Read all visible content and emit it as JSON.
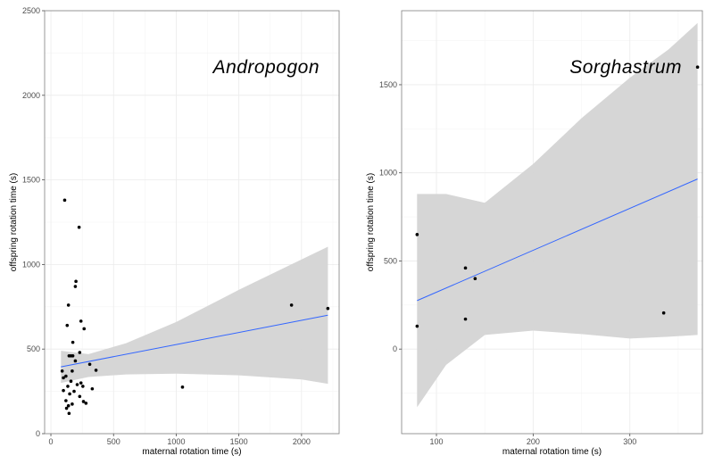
{
  "chart_data": [
    {
      "type": "scatter",
      "title": "Andropogon",
      "xlabel": "maternal rotation time (s)",
      "ylabel": "offspring rotation time (s)",
      "xlim": [
        -50,
        2300
      ],
      "ylim": [
        0,
        2500
      ],
      "xticks": [
        0,
        500,
        1000,
        1500,
        2000
      ],
      "yticks": [
        0,
        500,
        1000,
        1500,
        2000,
        2500
      ],
      "grid": true,
      "points": [
        {
          "x": 110,
          "y": 1380
        },
        {
          "x": 225,
          "y": 1220
        },
        {
          "x": 200,
          "y": 900
        },
        {
          "x": 195,
          "y": 870
        },
        {
          "x": 140,
          "y": 760
        },
        {
          "x": 240,
          "y": 665
        },
        {
          "x": 130,
          "y": 640
        },
        {
          "x": 265,
          "y": 620
        },
        {
          "x": 175,
          "y": 540
        },
        {
          "x": 230,
          "y": 480
        },
        {
          "x": 145,
          "y": 460
        },
        {
          "x": 160,
          "y": 460
        },
        {
          "x": 175,
          "y": 460
        },
        {
          "x": 195,
          "y": 430
        },
        {
          "x": 310,
          "y": 410
        },
        {
          "x": 90,
          "y": 370
        },
        {
          "x": 360,
          "y": 375
        },
        {
          "x": 170,
          "y": 370
        },
        {
          "x": 120,
          "y": 340
        },
        {
          "x": 100,
          "y": 330
        },
        {
          "x": 160,
          "y": 310
        },
        {
          "x": 240,
          "y": 300
        },
        {
          "x": 210,
          "y": 290
        },
        {
          "x": 135,
          "y": 280
        },
        {
          "x": 255,
          "y": 280
        },
        {
          "x": 330,
          "y": 265
        },
        {
          "x": 100,
          "y": 255
        },
        {
          "x": 185,
          "y": 250
        },
        {
          "x": 150,
          "y": 235
        },
        {
          "x": 230,
          "y": 220
        },
        {
          "x": 120,
          "y": 195
        },
        {
          "x": 260,
          "y": 190
        },
        {
          "x": 280,
          "y": 180
        },
        {
          "x": 170,
          "y": 175
        },
        {
          "x": 140,
          "y": 165
        },
        {
          "x": 125,
          "y": 150
        },
        {
          "x": 145,
          "y": 120
        },
        {
          "x": 1050,
          "y": 275
        },
        {
          "x": 1920,
          "y": 760
        },
        {
          "x": 2210,
          "y": 740
        }
      ],
      "fit": {
        "x": [
          80,
          2210
        ],
        "y": [
          395,
          700
        ]
      },
      "band": {
        "x": [
          80,
          300,
          600,
          1000,
          1500,
          2000,
          2210
        ],
        "lower": [
          300,
          335,
          350,
          355,
          345,
          320,
          295
        ],
        "upper": [
          490,
          470,
          535,
          660,
          850,
          1030,
          1105
        ]
      }
    },
    {
      "type": "scatter",
      "title": "Sorghastrum",
      "xlabel": "maternal rotation time (s)",
      "ylabel": "offspring rotation time (s)",
      "xlim": [
        64,
        375
      ],
      "ylim": [
        -480,
        1920
      ],
      "xticks": [
        100,
        200,
        300
      ],
      "yticks": [
        0,
        500,
        1000,
        1500
      ],
      "grid": true,
      "points": [
        {
          "x": 80,
          "y": 650
        },
        {
          "x": 80,
          "y": 130
        },
        {
          "x": 130,
          "y": 460
        },
        {
          "x": 140,
          "y": 400
        },
        {
          "x": 130,
          "y": 170
        },
        {
          "x": 335,
          "y": 205
        },
        {
          "x": 370,
          "y": 1600
        }
      ],
      "fit": {
        "x": [
          80,
          370
        ],
        "y": [
          275,
          965
        ]
      },
      "band": {
        "x": [
          80,
          110,
          150,
          200,
          250,
          300,
          340,
          370
        ],
        "lower": [
          -330,
          -90,
          80,
          105,
          85,
          60,
          70,
          80
        ],
        "upper": [
          880,
          880,
          830,
          1050,
          1310,
          1540,
          1700,
          1850
        ]
      }
    }
  ],
  "colors": {
    "fit_line": "#3366FF",
    "band": "#d4d4d4",
    "grid": "#ebebeb",
    "point": "#000000",
    "panel_border": "#7f7f7f"
  }
}
